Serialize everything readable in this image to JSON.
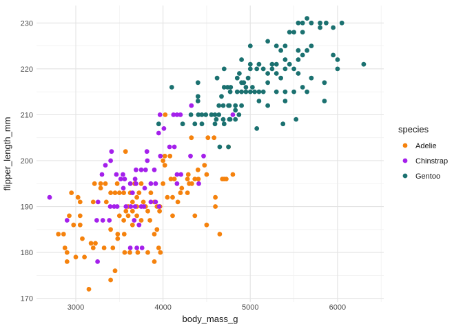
{
  "chart_data": {
    "type": "scatter",
    "title": "",
    "xlabel": "body_mass_g",
    "ylabel": "flipper_length_mm",
    "xlim": [
      2550,
      6530
    ],
    "ylim": [
      169.2,
      233.8
    ],
    "x_ticks": [
      3000,
      4000,
      5000,
      6000
    ],
    "x_minor_ticks": [
      3500,
      4500,
      5500,
      6500
    ],
    "y_ticks": [
      170,
      180,
      190,
      200,
      210,
      220,
      230
    ],
    "y_minor_ticks": [
      175,
      185,
      195,
      205,
      215,
      225
    ],
    "grid": "on",
    "panel_background": "#ffffff",
    "grid_major_color": "#e3e3e3",
    "grid_minor_color": "#f1f1f1",
    "tick_label_color": "#4d4d4d",
    "axis_title_color": "#141414",
    "point_radius": 3.4,
    "legend": {
      "title": "species",
      "position": "right",
      "entries": [
        {
          "label": "Adelie",
          "color": "#f5820d"
        },
        {
          "label": "Chinstrap",
          "color": "#a420eb"
        },
        {
          "label": "Gentoo",
          "color": "#1b7170"
        }
      ]
    },
    "series": [
      {
        "name": "Adelie",
        "color": "#f5820d",
        "points": [
          [
            2950,
            193
          ],
          [
            3025,
            192
          ],
          [
            2900,
            180
          ],
          [
            2875,
            181
          ],
          [
            2900,
            178
          ],
          [
            3000,
            179
          ],
          [
            3100,
            179
          ],
          [
            2975,
            186
          ],
          [
            2800,
            184
          ],
          [
            2860,
            184
          ],
          [
            3150,
            172
          ],
          [
            3050,
            191
          ],
          [
            3050,
            188
          ],
          [
            2925,
            188
          ],
          [
            3075,
            183
          ],
          [
            3175,
            182
          ],
          [
            3225,
            182
          ],
          [
            3200,
            181
          ],
          [
            3325,
            181
          ],
          [
            3425,
            181
          ],
          [
            3400,
            174
          ],
          [
            3450,
            176
          ],
          [
            3560,
            180
          ],
          [
            3620,
            180
          ],
          [
            3710,
            180
          ],
          [
            3825,
            180
          ],
          [
            3970,
            180
          ],
          [
            3900,
            178
          ],
          [
            3950,
            181
          ],
          [
            3215,
            195
          ],
          [
            3285,
            195
          ],
          [
            3340,
            195
          ],
          [
            3475,
            195
          ],
          [
            3400,
            193
          ],
          [
            3450,
            193
          ],
          [
            3500,
            193
          ],
          [
            3550,
            193
          ],
          [
            3285,
            194
          ],
          [
            3200,
            191
          ],
          [
            3350,
            191
          ],
          [
            3400,
            185
          ],
          [
            3480,
            184
          ],
          [
            3555,
            184
          ],
          [
            3480,
            183
          ],
          [
            3050,
            186
          ],
          [
            3860,
            193
          ],
          [
            3930,
            190
          ],
          [
            3965,
            190
          ],
          [
            3900,
            191
          ],
          [
            3960,
            189
          ],
          [
            4110,
            188
          ],
          [
            4365,
            188
          ],
          [
            3930,
            185
          ],
          [
            3900,
            184
          ],
          [
            4500,
            186
          ],
          [
            4650,
            184
          ],
          [
            4600,
            190
          ],
          [
            4600,
            192
          ],
          [
            4000,
            195
          ],
          [
            4090,
            196
          ],
          [
            4130,
            196
          ],
          [
            4280,
            196
          ],
          [
            4365,
            196
          ],
          [
            4405,
            196
          ],
          [
            4700,
            196
          ],
          [
            4215,
            194
          ],
          [
            4300,
            195
          ],
          [
            4200,
            193
          ],
          [
            4280,
            193
          ],
          [
            4330,
            195
          ],
          [
            4050,
            192
          ],
          [
            4110,
            192
          ],
          [
            4170,
            191
          ],
          [
            4020,
            201
          ],
          [
            4080,
            201
          ],
          [
            4000,
            200
          ],
          [
            4020,
            199
          ],
          [
            3570,
            202
          ],
          [
            4325,
            205
          ],
          [
            4515,
            205
          ],
          [
            4585,
            205
          ],
          [
            4025,
            210
          ],
          [
            4750,
            203
          ],
          [
            4800,
            197
          ],
          [
            4725,
            196
          ],
          [
            4680,
            196
          ],
          [
            4400,
            198
          ],
          [
            4475,
            199
          ],
          [
            4500,
            197
          ],
          [
            4290,
            197
          ],
          [
            3600,
            190
          ],
          [
            3650,
            189
          ],
          [
            3700,
            190
          ],
          [
            3750,
            187
          ],
          [
            3800,
            190
          ],
          [
            3650,
            186
          ],
          [
            3700,
            192
          ],
          [
            3775,
            191
          ],
          [
            3850,
            187
          ],
          [
            3600,
            188
          ],
          [
            3550,
            187
          ],
          [
            3500,
            188
          ],
          [
            3575,
            189
          ],
          [
            3625,
            193
          ],
          [
            3725,
            193
          ],
          [
            3675,
            195
          ],
          [
            3750,
            195
          ],
          [
            3650,
            191
          ],
          [
            3700,
            188
          ],
          [
            3825,
            189
          ]
        ]
      },
      {
        "name": "Chinstrap",
        "color": "#a420eb",
        "points": [
          [
            2700,
            192
          ],
          [
            2900,
            187
          ],
          [
            3250,
            178
          ],
          [
            3300,
            197
          ],
          [
            3465,
            197
          ],
          [
            3540,
            197
          ],
          [
            3625,
            195
          ],
          [
            3690,
            195
          ],
          [
            3860,
            195
          ],
          [
            3915,
            195
          ],
          [
            3545,
            194
          ],
          [
            3650,
            193
          ],
          [
            3790,
            194
          ],
          [
            3255,
            191
          ],
          [
            3395,
            190
          ],
          [
            3440,
            190
          ],
          [
            3475,
            190
          ],
          [
            3575,
            190
          ],
          [
            3630,
            190
          ],
          [
            3680,
            190
          ],
          [
            3750,
            190
          ],
          [
            3780,
            190
          ],
          [
            3860,
            191
          ],
          [
            3915,
            191
          ],
          [
            3955,
            190
          ],
          [
            3240,
            187
          ],
          [
            3310,
            187
          ],
          [
            3385,
            187
          ],
          [
            3670,
            187
          ],
          [
            3725,
            186
          ],
          [
            3625,
            181
          ],
          [
            3700,
            181
          ],
          [
            3760,
            181
          ],
          [
            4010,
            207
          ],
          [
            3950,
            206
          ],
          [
            4075,
            203
          ],
          [
            4130,
            203
          ],
          [
            3410,
            202
          ],
          [
            3815,
            202
          ],
          [
            3400,
            200
          ],
          [
            3340,
            199
          ],
          [
            3820,
            200
          ],
          [
            3970,
            201
          ],
          [
            4315,
            201
          ],
          [
            4465,
            201
          ],
          [
            3690,
            198
          ],
          [
            3750,
            198
          ],
          [
            3800,
            198
          ],
          [
            3900,
            198
          ],
          [
            3515,
            196
          ],
          [
            3560,
            196
          ],
          [
            3680,
            196
          ],
          [
            4160,
            197
          ],
          [
            4205,
            197
          ],
          [
            4160,
            195
          ],
          [
            4410,
            195
          ],
          [
            3965,
            210
          ],
          [
            4120,
            210
          ],
          [
            4160,
            210
          ],
          [
            4200,
            210
          ],
          [
            4325,
            212
          ],
          [
            4800,
            210
          ]
        ]
      },
      {
        "name": "Gentoo",
        "color": "#1b7170",
        "points": [
          [
            5650,
            231
          ],
          [
            5550,
            230
          ],
          [
            5600,
            230
          ],
          [
            5700,
            230
          ],
          [
            5800,
            230
          ],
          [
            5870,
            230
          ],
          [
            6050,
            230
          ],
          [
            5800,
            229
          ],
          [
            5950,
            229
          ],
          [
            5450,
            228
          ],
          [
            5500,
            228
          ],
          [
            5600,
            228
          ],
          [
            5200,
            226
          ],
          [
            5000,
            225
          ],
          [
            5300,
            225
          ],
          [
            5400,
            225
          ],
          [
            5700,
            225
          ],
          [
            5350,
            224
          ],
          [
            5550,
            224
          ],
          [
            5650,
            224
          ],
          [
            5600,
            223
          ],
          [
            5950,
            223
          ],
          [
            4900,
            222
          ],
          [
            5400,
            222
          ],
          [
            5550,
            222
          ],
          [
            6000,
            222
          ],
          [
            6300,
            221
          ],
          [
            5000,
            221
          ],
          [
            5100,
            221
          ],
          [
            5250,
            221
          ],
          [
            5300,
            221
          ],
          [
            5450,
            221
          ],
          [
            5000,
            220
          ],
          [
            5075,
            220
          ],
          [
            5150,
            220
          ],
          [
            5250,
            220
          ],
          [
            5400,
            220
          ],
          [
            5500,
            220
          ],
          [
            6000,
            220
          ],
          [
            4700,
            220
          ],
          [
            4875,
            219
          ],
          [
            5200,
            219
          ],
          [
            5300,
            219
          ],
          [
            5550,
            219
          ],
          [
            4850,
            218
          ],
          [
            4975,
            218
          ],
          [
            5350,
            218
          ],
          [
            5700,
            218
          ],
          [
            4620,
            218
          ],
          [
            4900,
            217
          ],
          [
            4925,
            217
          ],
          [
            5200,
            217
          ],
          [
            5850,
            217
          ],
          [
            4400,
            217
          ],
          [
            4950,
            216
          ],
          [
            5025,
            216
          ],
          [
            5600,
            216
          ],
          [
            4100,
            216
          ],
          [
            4700,
            216
          ],
          [
            4740,
            216
          ],
          [
            4775,
            216
          ],
          [
            4900,
            215
          ],
          [
            4850,
            215
          ],
          [
            4950,
            215
          ],
          [
            5000,
            215
          ],
          [
            5050,
            215
          ],
          [
            5100,
            215
          ],
          [
            5150,
            215
          ],
          [
            5300,
            215
          ],
          [
            5400,
            215
          ],
          [
            5500,
            215
          ],
          [
            5650,
            215
          ],
          [
            4770,
            215
          ],
          [
            5100,
            213
          ],
          [
            5400,
            213
          ],
          [
            5850,
            213
          ],
          [
            4400,
            213
          ],
          [
            4400,
            214
          ],
          [
            4670,
            214
          ],
          [
            4900,
            212
          ],
          [
            5200,
            212
          ],
          [
            4760,
            212
          ],
          [
            4830,
            212
          ],
          [
            4640,
            212
          ],
          [
            4690,
            212
          ],
          [
            4750,
            212
          ],
          [
            4830,
            211
          ],
          [
            4870,
            210
          ],
          [
            4760,
            209
          ],
          [
            4830,
            209
          ],
          [
            5525,
            209
          ],
          [
            4610,
            209
          ],
          [
            4690,
            209
          ],
          [
            4770,
            209
          ],
          [
            5375,
            208
          ],
          [
            5075,
            207
          ],
          [
            4320,
            210
          ],
          [
            4405,
            210
          ],
          [
            4445,
            210
          ],
          [
            4490,
            210
          ],
          [
            4555,
            210
          ],
          [
            4595,
            210
          ],
          [
            4640,
            210
          ],
          [
            4225,
            208
          ],
          [
            4365,
            208
          ],
          [
            4445,
            208
          ],
          [
            4595,
            208
          ],
          [
            4700,
            208
          ],
          [
            3950,
            208
          ],
          [
            4650,
            203
          ],
          [
            4750,
            203
          ]
        ]
      }
    ]
  }
}
